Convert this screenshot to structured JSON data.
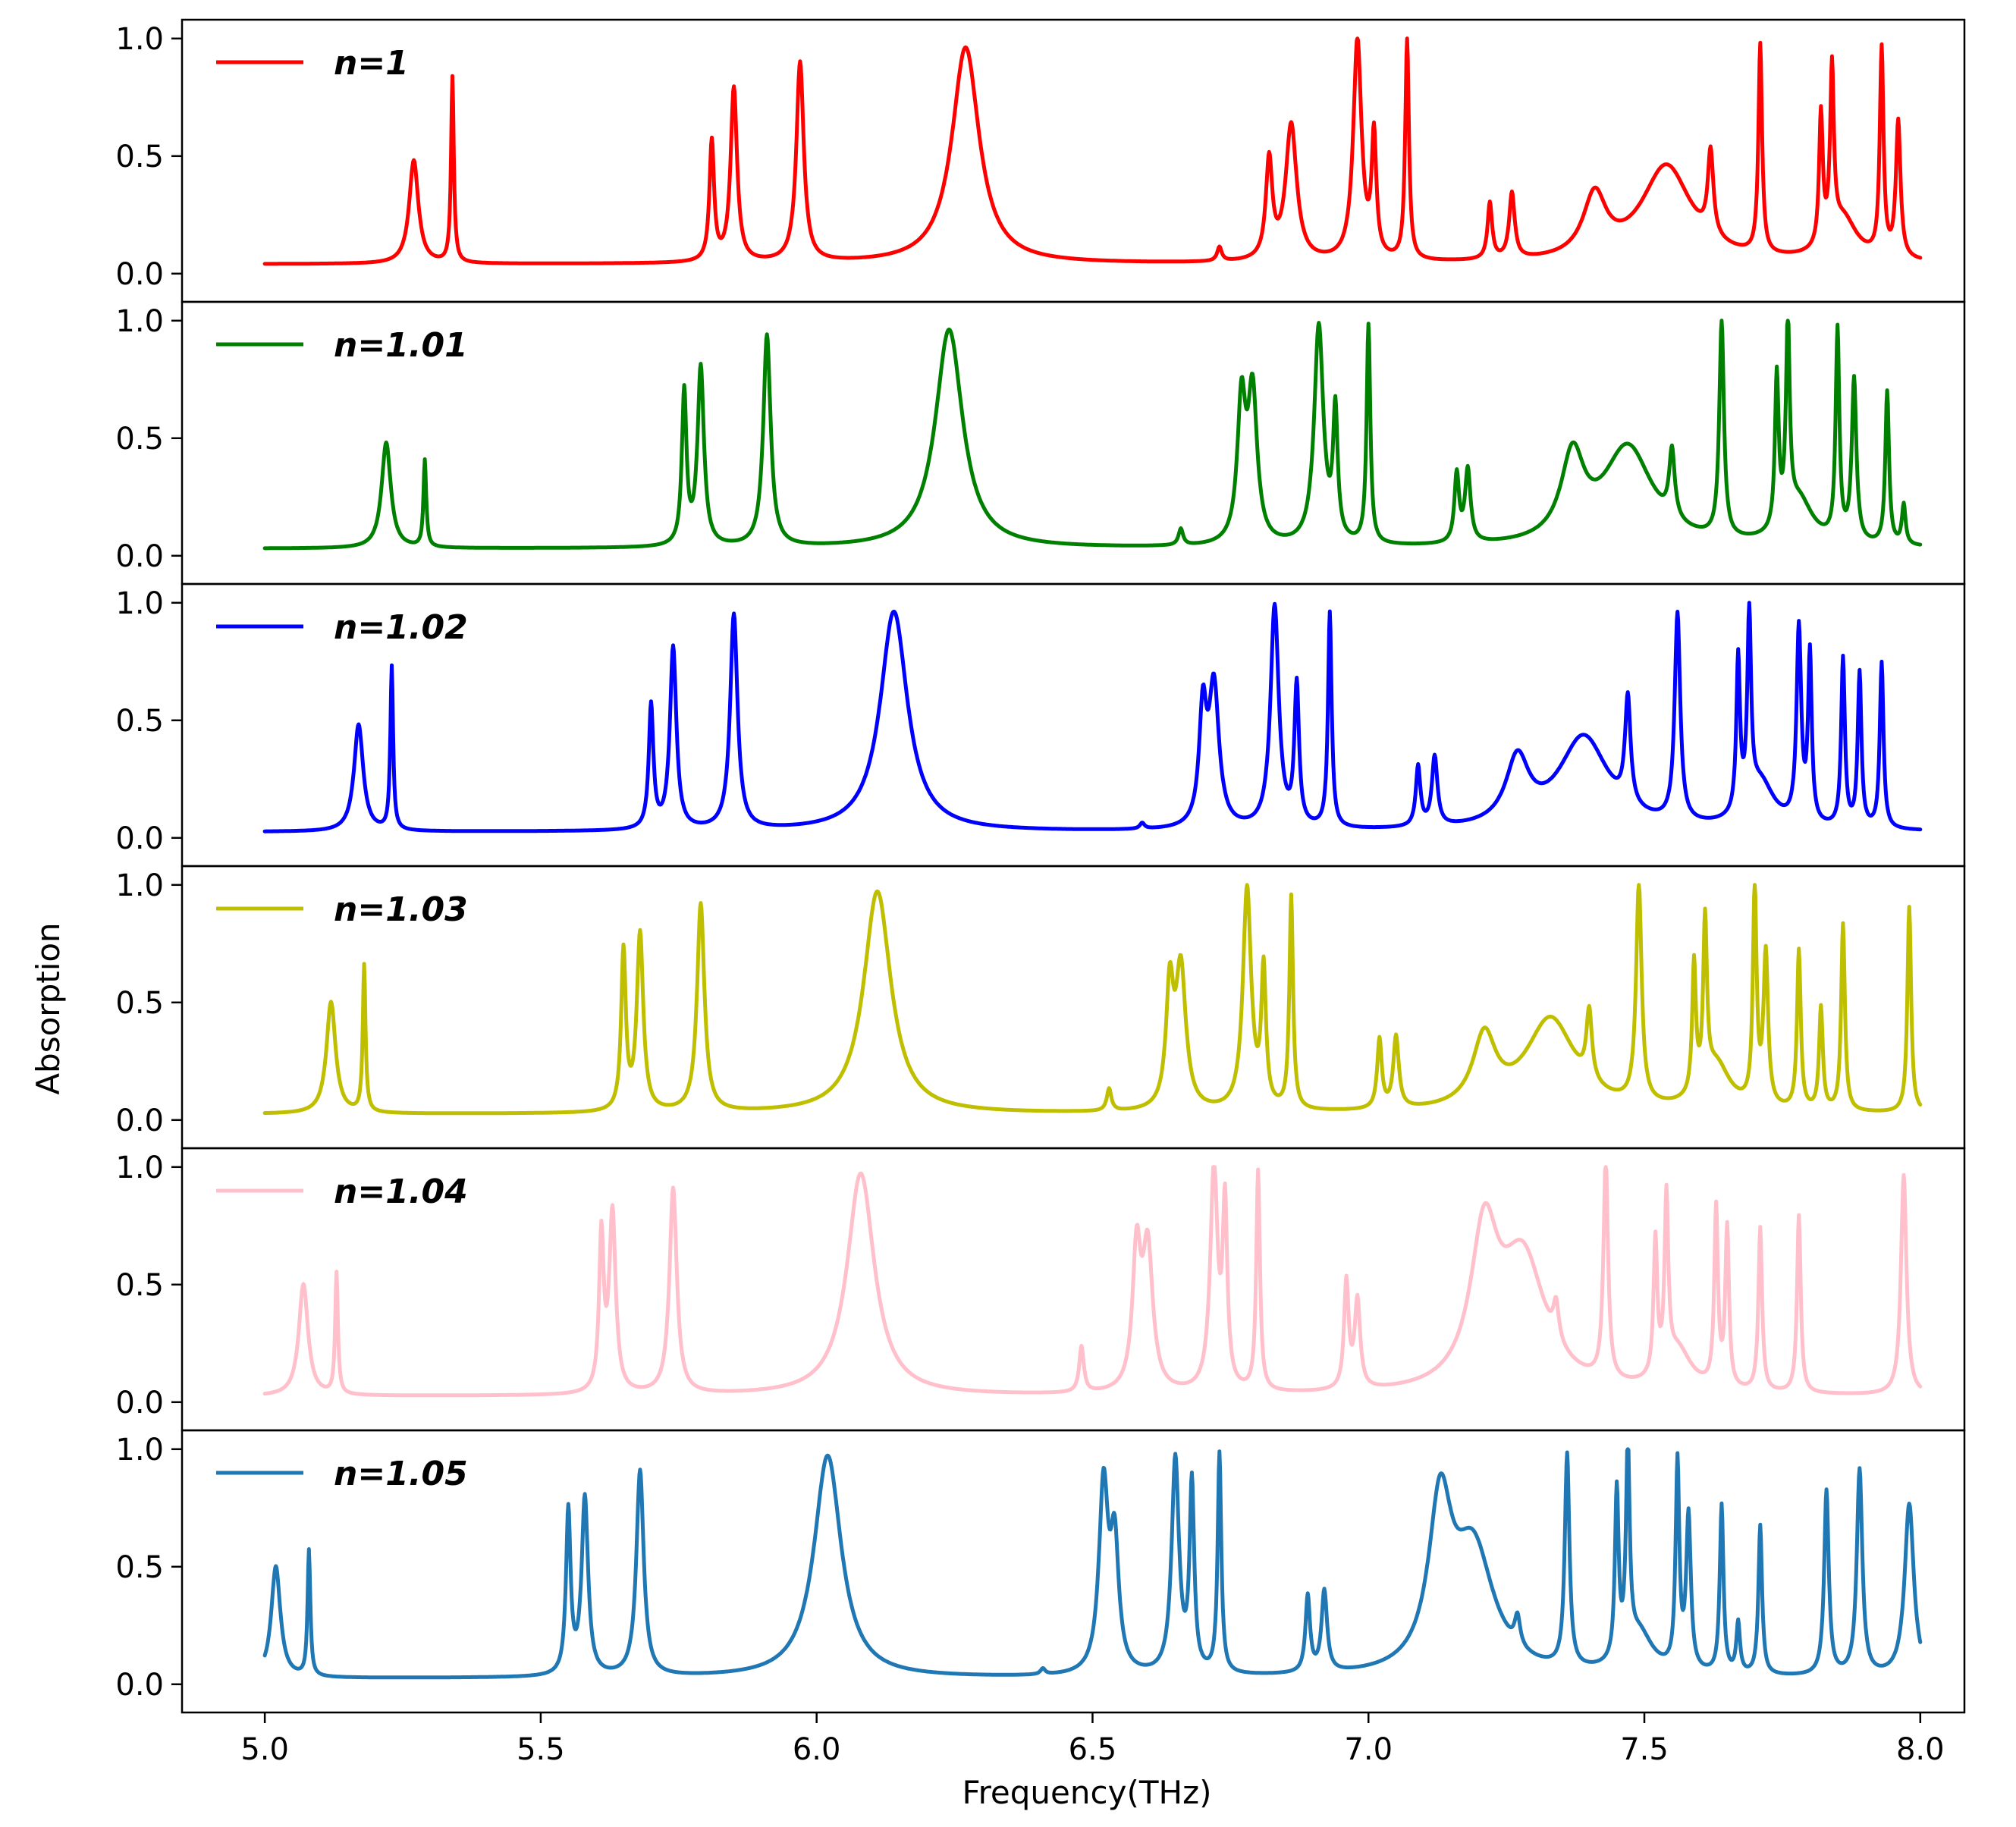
{
  "chart_data": {
    "type": "line",
    "xlabel": "Frequency(THz)",
    "ylabel": "Absorption",
    "xlim": [
      4.85,
      8.08
    ],
    "ylim": [
      -0.12,
      1.08
    ],
    "x_ticks": [
      5.0,
      5.5,
      6.0,
      6.5,
      7.0,
      7.5,
      8.0
    ],
    "x_tick_labels": [
      "5.0",
      "5.5",
      "6.0",
      "6.5",
      "7.0",
      "7.5",
      "8.0"
    ],
    "y_ticks": [
      0.0,
      0.5,
      1.0
    ],
    "y_tick_labels": [
      "0.0",
      "0.5",
      "1.0"
    ],
    "legend_position": "top-left",
    "x_range": [
      5.0,
      8.0
    ],
    "series": [
      {
        "name": "n=1",
        "color": "#ff0000",
        "baseline": 0.04,
        "peaks": [
          [
            5.27,
            0.48,
            0.01
          ],
          [
            5.34,
            0.83,
            0.003
          ],
          [
            5.81,
            0.55,
            0.005
          ],
          [
            5.85,
            0.78,
            0.007
          ],
          [
            5.97,
            0.89,
            0.008
          ],
          [
            6.27,
            0.96,
            0.03
          ],
          [
            6.73,
            0.1,
            0.005
          ],
          [
            6.82,
            0.46,
            0.007
          ],
          [
            6.86,
            0.62,
            0.012
          ],
          [
            6.98,
            0.98,
            0.009
          ],
          [
            7.01,
            0.55,
            0.005
          ],
          [
            7.07,
            0.98,
            0.004
          ],
          [
            7.22,
            0.28,
            0.005
          ],
          [
            7.26,
            0.32,
            0.006
          ],
          [
            7.41,
            0.3,
            0.025
          ],
          [
            7.54,
            0.45,
            0.055
          ],
          [
            7.62,
            0.4,
            0.006
          ],
          [
            7.71,
            0.93,
            0.004
          ],
          [
            7.82,
            0.6,
            0.004
          ],
          [
            7.84,
            0.76,
            0.004
          ],
          [
            7.86,
            0.22,
            0.03
          ],
          [
            7.93,
            0.92,
            0.004
          ],
          [
            7.96,
            0.62,
            0.005
          ]
        ]
      },
      {
        "name": "n=1.01",
        "color": "#008000",
        "baseline": 0.03,
        "peaks": [
          [
            5.22,
            0.48,
            0.01
          ],
          [
            5.29,
            0.4,
            0.003
          ],
          [
            5.76,
            0.68,
            0.005
          ],
          [
            5.79,
            0.79,
            0.007
          ],
          [
            5.91,
            0.93,
            0.008
          ],
          [
            6.24,
            0.96,
            0.03
          ],
          [
            6.66,
            0.1,
            0.005
          ],
          [
            6.77,
            0.62,
            0.009
          ],
          [
            6.79,
            0.66,
            0.01
          ],
          [
            6.91,
            0.96,
            0.01
          ],
          [
            6.94,
            0.57,
            0.005
          ],
          [
            7.0,
            0.96,
            0.004
          ],
          [
            7.16,
            0.32,
            0.005
          ],
          [
            7.18,
            0.34,
            0.006
          ],
          [
            7.37,
            0.38,
            0.025
          ],
          [
            7.47,
            0.45,
            0.055
          ],
          [
            7.55,
            0.32,
            0.006
          ],
          [
            7.64,
            0.95,
            0.005
          ],
          [
            7.74,
            0.68,
            0.004
          ],
          [
            7.76,
            0.88,
            0.004
          ],
          [
            7.78,
            0.22,
            0.03
          ],
          [
            7.85,
            0.92,
            0.004
          ],
          [
            7.88,
            0.72,
            0.005
          ],
          [
            7.94,
            0.68,
            0.004
          ],
          [
            7.97,
            0.2,
            0.004
          ]
        ]
      },
      {
        "name": "n=1.02",
        "color": "#0000ff",
        "baseline": 0.025,
        "peaks": [
          [
            5.17,
            0.48,
            0.01
          ],
          [
            5.23,
            0.72,
            0.003
          ],
          [
            5.7,
            0.55,
            0.005
          ],
          [
            5.74,
            0.8,
            0.007
          ],
          [
            5.85,
            0.94,
            0.008
          ],
          [
            6.14,
            0.96,
            0.03
          ],
          [
            6.59,
            0.05,
            0.005
          ],
          [
            6.7,
            0.5,
            0.008
          ],
          [
            6.72,
            0.62,
            0.011
          ],
          [
            6.83,
            0.97,
            0.009
          ],
          [
            6.87,
            0.62,
            0.005
          ],
          [
            6.93,
            0.94,
            0.004
          ],
          [
            7.09,
            0.28,
            0.005
          ],
          [
            7.12,
            0.32,
            0.006
          ],
          [
            7.27,
            0.3,
            0.025
          ],
          [
            7.39,
            0.42,
            0.055
          ],
          [
            7.47,
            0.48,
            0.006
          ],
          [
            7.56,
            0.91,
            0.006
          ],
          [
            7.67,
            0.68,
            0.004
          ],
          [
            7.69,
            0.82,
            0.004
          ],
          [
            7.71,
            0.22,
            0.03
          ],
          [
            7.78,
            0.85,
            0.005
          ],
          [
            7.8,
            0.74,
            0.004
          ],
          [
            7.86,
            0.74,
            0.004
          ],
          [
            7.89,
            0.68,
            0.004
          ],
          [
            7.93,
            0.73,
            0.004
          ]
        ]
      },
      {
        "name": "n=1.03",
        "color": "#bfbf00",
        "baseline": 0.025,
        "peaks": [
          [
            5.12,
            0.5,
            0.01
          ],
          [
            5.18,
            0.65,
            0.003
          ],
          [
            5.65,
            0.7,
            0.005
          ],
          [
            5.68,
            0.78,
            0.007
          ],
          [
            5.79,
            0.91,
            0.008
          ],
          [
            6.11,
            0.97,
            0.03
          ],
          [
            6.53,
            0.12,
            0.005
          ],
          [
            6.64,
            0.52,
            0.008
          ],
          [
            6.66,
            0.62,
            0.011
          ],
          [
            6.78,
            0.97,
            0.009
          ],
          [
            6.81,
            0.6,
            0.005
          ],
          [
            6.86,
            0.93,
            0.004
          ],
          [
            7.02,
            0.32,
            0.005
          ],
          [
            7.05,
            0.33,
            0.006
          ],
          [
            7.21,
            0.32,
            0.025
          ],
          [
            7.33,
            0.42,
            0.055
          ],
          [
            7.4,
            0.32,
            0.006
          ],
          [
            7.49,
            0.95,
            0.006
          ],
          [
            7.59,
            0.58,
            0.004
          ],
          [
            7.61,
            0.72,
            0.004
          ],
          [
            7.63,
            0.22,
            0.03
          ],
          [
            7.7,
            0.95,
            0.004
          ],
          [
            7.72,
            0.67,
            0.005
          ],
          [
            7.78,
            0.7,
            0.004
          ],
          [
            7.82,
            0.46,
            0.004
          ],
          [
            7.86,
            0.82,
            0.004
          ],
          [
            7.98,
            0.9,
            0.004
          ]
        ]
      },
      {
        "name": "n=1.04",
        "color": "#ffc0cb",
        "baseline": 0.025,
        "peaks": [
          [
            5.07,
            0.5,
            0.01
          ],
          [
            5.13,
            0.54,
            0.003
          ],
          [
            5.61,
            0.68,
            0.005
          ],
          [
            5.63,
            0.79,
            0.007
          ],
          [
            5.74,
            0.9,
            0.008
          ],
          [
            6.08,
            0.97,
            0.03
          ],
          [
            6.48,
            0.22,
            0.005
          ],
          [
            6.58,
            0.6,
            0.009
          ],
          [
            6.6,
            0.62,
            0.011
          ],
          [
            6.72,
            0.97,
            0.008
          ],
          [
            6.74,
            0.78,
            0.005
          ],
          [
            6.8,
            0.96,
            0.004
          ],
          [
            6.96,
            0.48,
            0.005
          ],
          [
            6.98,
            0.4,
            0.006
          ],
          [
            7.21,
            0.65,
            0.03
          ],
          [
            7.28,
            0.58,
            0.05
          ],
          [
            7.34,
            0.18,
            0.006
          ],
          [
            7.43,
            0.96,
            0.005
          ],
          [
            7.52,
            0.6,
            0.004
          ],
          [
            7.54,
            0.75,
            0.004
          ],
          [
            7.56,
            0.2,
            0.03
          ],
          [
            7.63,
            0.78,
            0.004
          ],
          [
            7.65,
            0.7,
            0.004
          ],
          [
            7.71,
            0.72,
            0.004
          ],
          [
            7.78,
            0.78,
            0.004
          ],
          [
            7.97,
            0.96,
            0.006
          ]
        ]
      },
      {
        "name": "n=1.05",
        "color": "#1f77b4",
        "baseline": 0.025,
        "peaks": [
          [
            5.02,
            0.5,
            0.01
          ],
          [
            5.08,
            0.56,
            0.003
          ],
          [
            5.55,
            0.72,
            0.005
          ],
          [
            5.58,
            0.78,
            0.007
          ],
          [
            5.68,
            0.9,
            0.008
          ],
          [
            6.02,
            0.97,
            0.03
          ],
          [
            6.41,
            0.05,
            0.005
          ],
          [
            6.52,
            0.82,
            0.01
          ],
          [
            6.54,
            0.55,
            0.009
          ],
          [
            6.65,
            0.94,
            0.008
          ],
          [
            6.68,
            0.82,
            0.005
          ],
          [
            6.73,
            0.96,
            0.004
          ],
          [
            6.89,
            0.35,
            0.005
          ],
          [
            6.92,
            0.37,
            0.006
          ],
          [
            7.13,
            0.7,
            0.025
          ],
          [
            7.19,
            0.55,
            0.045
          ],
          [
            7.27,
            0.15,
            0.006
          ],
          [
            7.36,
            0.93,
            0.005
          ],
          [
            7.45,
            0.74,
            0.004
          ],
          [
            7.47,
            0.9,
            0.004
          ],
          [
            7.49,
            0.2,
            0.03
          ],
          [
            7.56,
            0.9,
            0.004
          ],
          [
            7.58,
            0.68,
            0.005
          ],
          [
            7.64,
            0.74,
            0.004
          ],
          [
            7.67,
            0.24,
            0.004
          ],
          [
            7.71,
            0.66,
            0.004
          ],
          [
            7.83,
            0.81,
            0.005
          ],
          [
            7.89,
            0.9,
            0.006
          ],
          [
            7.98,
            0.76,
            0.01
          ]
        ]
      }
    ]
  }
}
